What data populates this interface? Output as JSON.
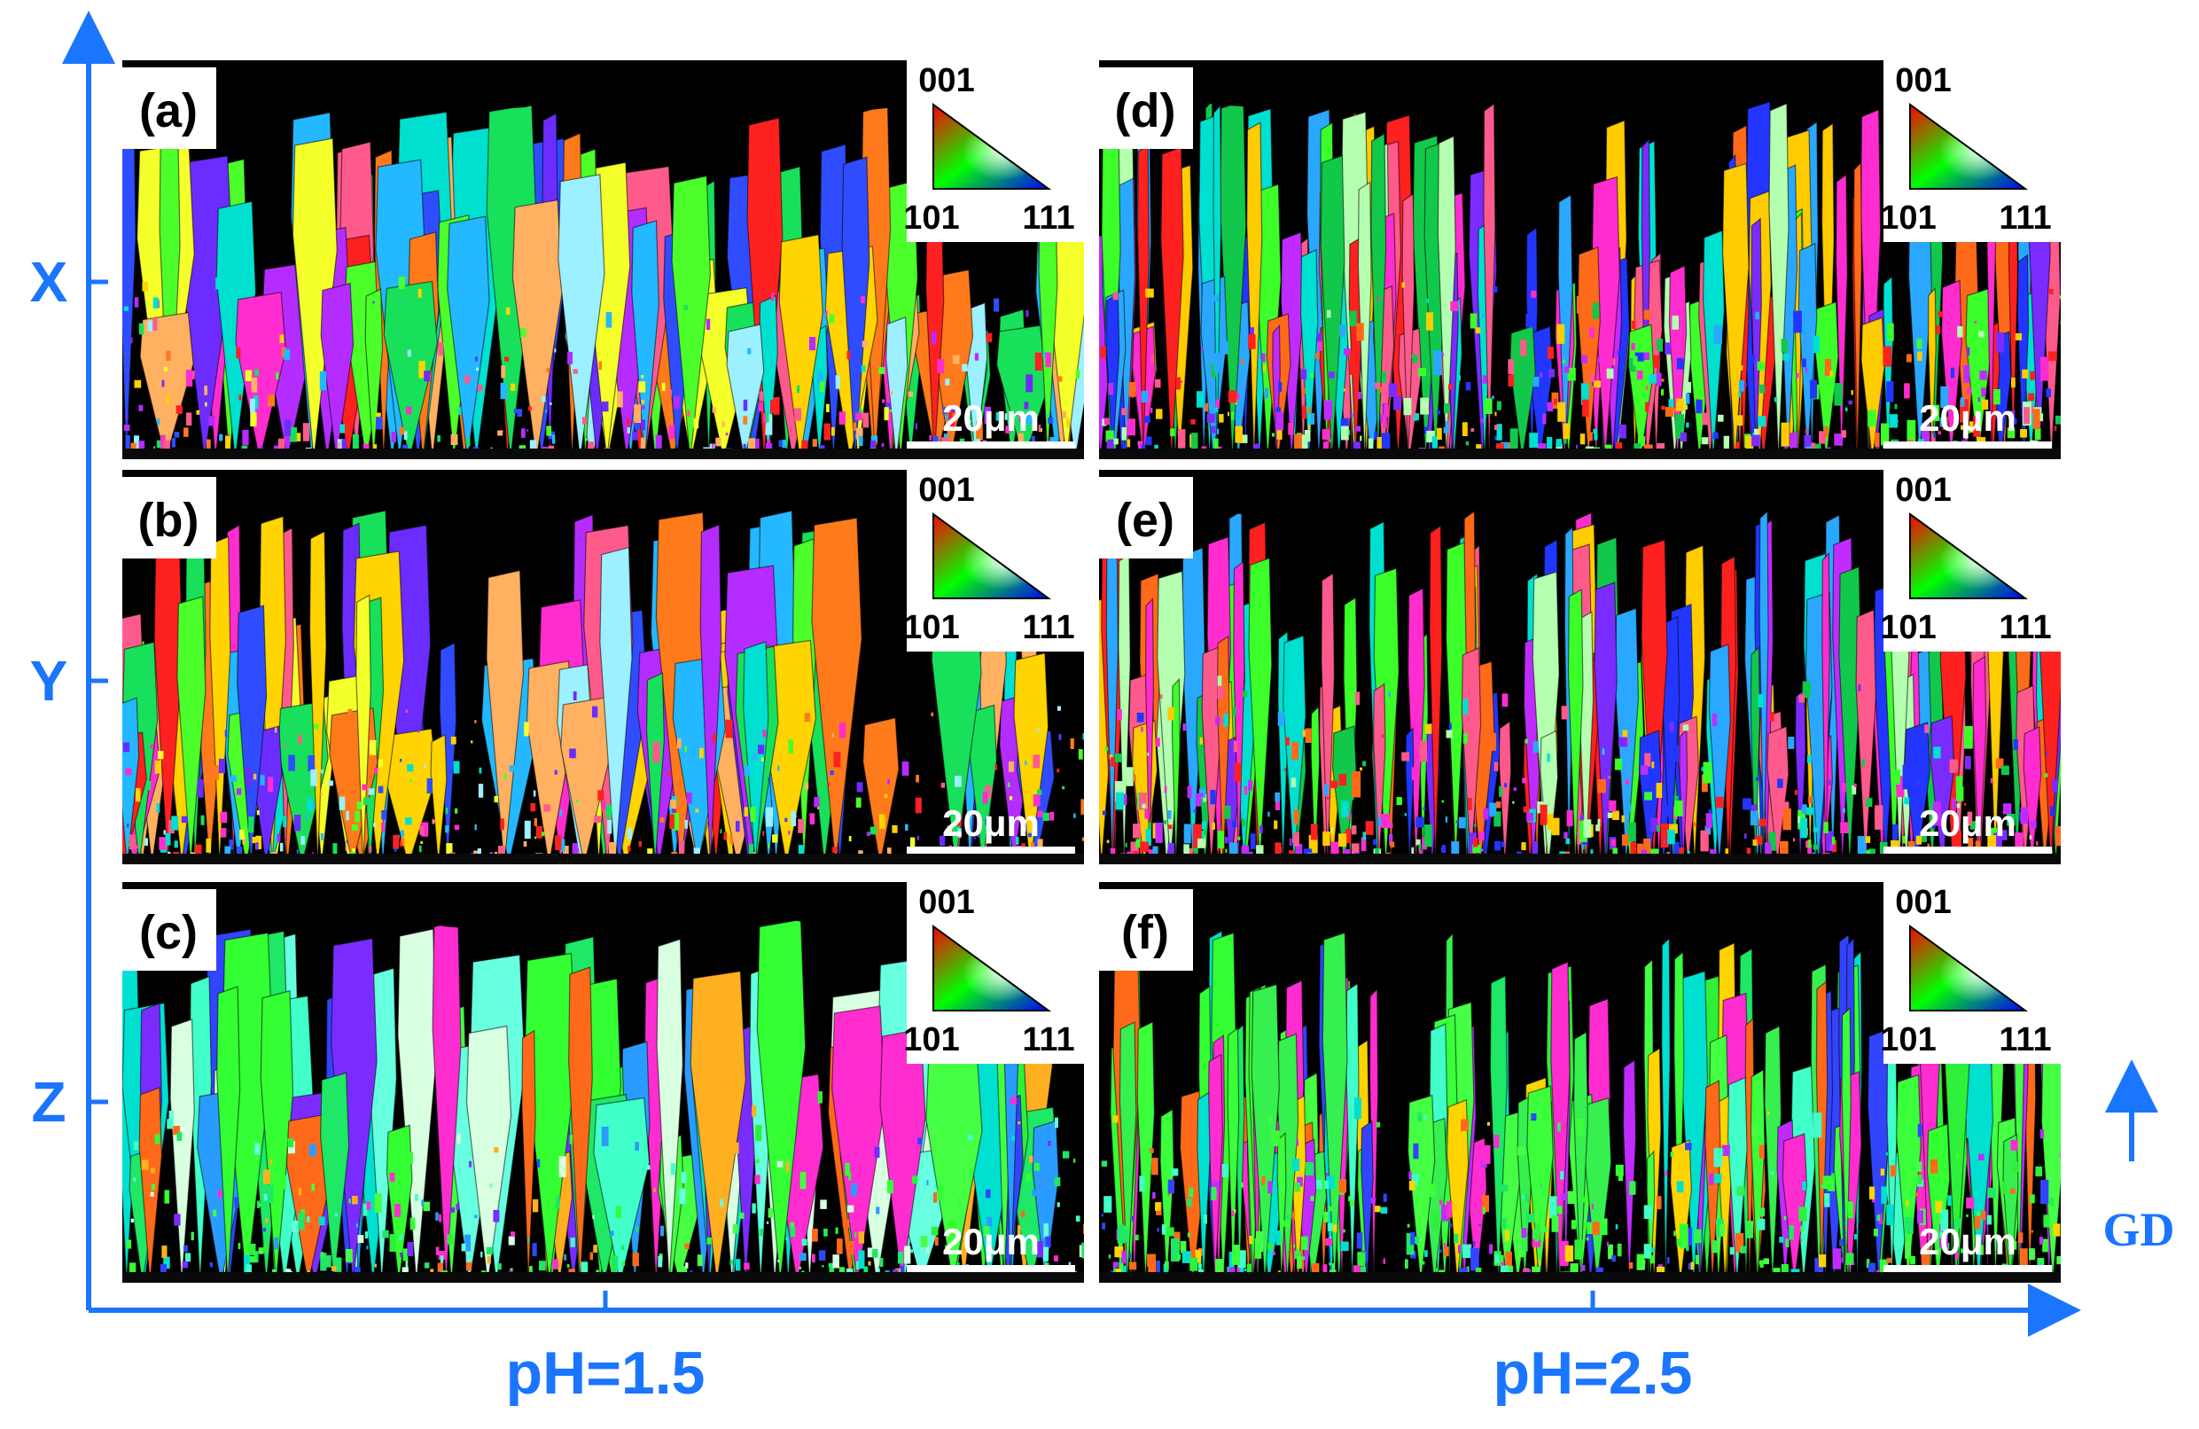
{
  "axes": {
    "rows": [
      "X",
      "Y",
      "Z"
    ],
    "columns": [
      "pH=1.5",
      "pH=2.5"
    ],
    "direction_label": "GD",
    "color": "#1a75ff"
  },
  "panels": [
    {
      "label": "(a)",
      "scale_bar": "20μm",
      "triangle": [
        "001",
        "101",
        "111"
      ],
      "palette": "mixed"
    },
    {
      "label": "(b)",
      "scale_bar": "20μm",
      "triangle": [
        "001",
        "101",
        "111"
      ],
      "palette": "mixed"
    },
    {
      "label": "(c)",
      "scale_bar": "20μm",
      "triangle": [
        "001",
        "101",
        "111"
      ],
      "palette": "green-dominant"
    },
    {
      "label": "(d)",
      "scale_bar": "20μm",
      "triangle": [
        "001",
        "101",
        "111"
      ],
      "palette": "mixed-fine"
    },
    {
      "label": "(e)",
      "scale_bar": "20μm",
      "triangle": [
        "001",
        "101",
        "111"
      ],
      "palette": "mixed-fine"
    },
    {
      "label": "(f)",
      "scale_bar": "20μm",
      "triangle": [
        "001",
        "101",
        "111"
      ],
      "palette": "green-dominant-fine"
    }
  ],
  "triangle_colors": {
    "corner_001": "#ff0000",
    "corner_101": "#00ff00",
    "corner_111": "#0000ff"
  }
}
